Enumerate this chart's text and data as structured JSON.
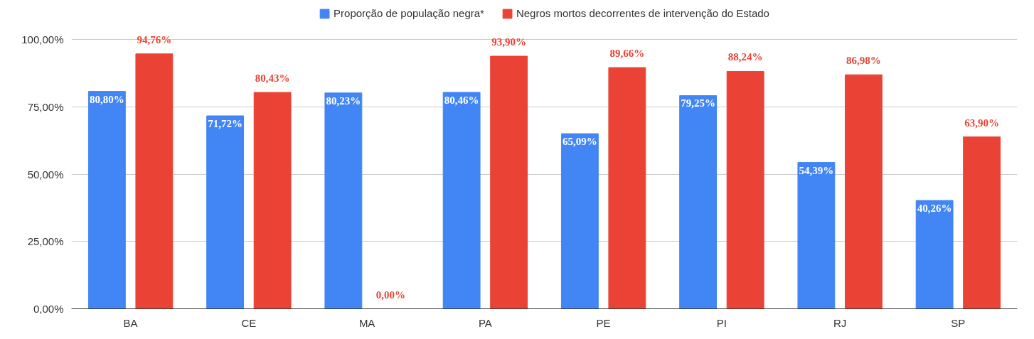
{
  "chart_data": {
    "type": "bar",
    "categories": [
      "BA",
      "CE",
      "MA",
      "PA",
      "PE",
      "PI",
      "RJ",
      "SP"
    ],
    "series": [
      {
        "name": "Proporção de população negra*",
        "color": "#4285f4",
        "values": [
          80.8,
          71.72,
          80.23,
          80.46,
          65.09,
          79.25,
          54.39,
          40.26
        ],
        "value_labels": [
          "80,80%",
          "71,72%",
          "80,23%",
          "80,46%",
          "65,09%",
          "79,25%",
          "54,39%",
          "40,26%"
        ]
      },
      {
        "name": "Negros mortos decorrentes de intervenção do Estado",
        "color": "#ea4335",
        "values": [
          94.76,
          80.43,
          0.0,
          93.9,
          89.66,
          88.24,
          86.98,
          63.9
        ],
        "value_labels": [
          "94,76%",
          "80,43%",
          "0,00%",
          "93,90%",
          "89,66%",
          "88,24%",
          "86,98%",
          "63,90%"
        ]
      }
    ],
    "ylim": [
      0,
      112
    ],
    "yticks": [
      {
        "value": 0,
        "label": "0,00%"
      },
      {
        "value": 25,
        "label": "25,00%"
      },
      {
        "value": 50,
        "label": "50,00%"
      },
      {
        "value": 75,
        "label": "75,00%"
      },
      {
        "value": 100,
        "label": "100,00%"
      }
    ],
    "grid": "y",
    "legend": "top"
  }
}
